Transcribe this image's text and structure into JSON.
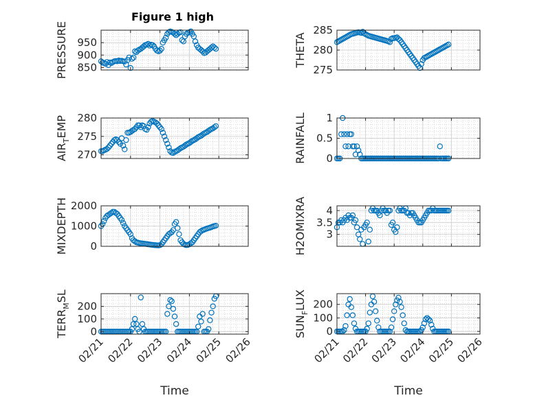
{
  "figure": {
    "title": "Figure 1 high"
  },
  "x_axis": {
    "label": "Time",
    "ticks": [
      "02/21",
      "02/22",
      "02/23",
      "02/24",
      "02/25",
      "02/26"
    ]
  },
  "chart_data": [
    {
      "type": "scatter",
      "ylabel": "PRESSURE",
      "ylim": [
        840,
        1000
      ],
      "yticks": [
        850,
        900,
        950
      ],
      "x": [
        0,
        0.05,
        0.1,
        0.15,
        0.2,
        0.25,
        0.3,
        0.35,
        0.4,
        0.45,
        0.5,
        0.55,
        0.6,
        0.65,
        0.7,
        0.75,
        0.8,
        0.85,
        0.9,
        0.95,
        1.0,
        1.05,
        1.1,
        1.15,
        1.2,
        1.25,
        1.3,
        1.35,
        1.4,
        1.45,
        1.5,
        1.55,
        1.6,
        1.65,
        1.7,
        1.75,
        1.8,
        1.85,
        1.9,
        1.95,
        2.0,
        2.05,
        2.1,
        2.15,
        2.2,
        2.25,
        2.3,
        2.35,
        2.4,
        2.45,
        2.5,
        2.55,
        2.6,
        2.65,
        2.7,
        2.75,
        2.8,
        2.85,
        2.9,
        2.95,
        3.0,
        3.05,
        3.1,
        3.15,
        3.2,
        3.25,
        3.3,
        3.35,
        3.4,
        3.45,
        3.5,
        3.55,
        3.6,
        3.65,
        3.7,
        3.75,
        3.8,
        3.85,
        3.9
      ],
      "y": [
        875,
        870,
        868,
        865,
        872,
        860,
        870,
        868,
        872,
        875,
        876,
        875,
        878,
        876,
        877,
        875,
        874,
        862,
        880,
        890,
        848,
        885,
        890,
        915,
        912,
        918,
        922,
        925,
        930,
        935,
        940,
        942,
        945,
        938,
        942,
        940,
        935,
        925,
        918,
        915,
        918,
        925,
        950,
        960,
        970,
        985,
        992,
        995,
        993,
        990,
        985,
        980,
        985,
        990,
        992,
        960,
        955,
        975,
        985,
        990,
        992,
        995,
        985,
        975,
        955,
        940,
        930,
        925,
        920,
        915,
        908,
        910,
        915,
        920,
        925,
        930,
        935,
        930,
        925
      ]
    },
    {
      "type": "scatter",
      "ylabel": "THETA",
      "ylim": [
        275,
        285
      ],
      "yticks": [
        275,
        280,
        285
      ],
      "x": [
        0,
        0.05,
        0.1,
        0.15,
        0.2,
        0.25,
        0.3,
        0.35,
        0.4,
        0.45,
        0.5,
        0.55,
        0.6,
        0.65,
        0.7,
        0.75,
        0.8,
        0.85,
        0.9,
        0.95,
        1.0,
        1.05,
        1.1,
        1.15,
        1.2,
        1.25,
        1.3,
        1.35,
        1.4,
        1.45,
        1.5,
        1.55,
        1.6,
        1.65,
        1.7,
        1.75,
        1.8,
        1.85,
        1.9,
        1.95,
        2.0,
        2.05,
        2.1,
        2.15,
        2.2,
        2.25,
        2.3,
        2.35,
        2.4,
        2.45,
        2.5,
        2.55,
        2.6,
        2.65,
        2.7,
        2.75,
        2.8,
        2.85,
        2.9,
        2.95,
        3.0,
        3.05,
        3.1,
        3.15,
        3.2,
        3.25,
        3.3,
        3.35,
        3.4,
        3.45,
        3.5,
        3.55,
        3.6,
        3.65,
        3.7,
        3.75,
        3.8,
        3.85,
        3.9
      ],
      "y": [
        282,
        282.2,
        282.4,
        282.6,
        282.8,
        283,
        283.2,
        283.4,
        283.6,
        283.8,
        284,
        284.1,
        284.2,
        284.3,
        284.4,
        284.5,
        284.4,
        284.3,
        284.6,
        284.2,
        284,
        283.8,
        283.6,
        283.5,
        283.4,
        283.3,
        283.2,
        283.1,
        283,
        282.9,
        282.8,
        282.7,
        282.6,
        282.5,
        282.4,
        282.3,
        282.2,
        282,
        282.8,
        283,
        283,
        283.1,
        283.2,
        282.8,
        282.5,
        282,
        281.5,
        281,
        280.5,
        280,
        279.5,
        279,
        278.5,
        278,
        277.5,
        277,
        276.5,
        276,
        275.5,
        276.5,
        277.5,
        278,
        278.2,
        278.4,
        278.6,
        278.8,
        279,
        279.2,
        279.4,
        279.6,
        279.8,
        280,
        280.2,
        280.4,
        280.6,
        280.8,
        281,
        281.2,
        281.4
      ]
    },
    {
      "type": "scatter",
      "ylabel": "AIR_TEMP",
      "ylim": [
        269,
        280
      ],
      "yticks": [
        270,
        275,
        280
      ],
      "x": [
        0,
        0.05,
        0.1,
        0.15,
        0.2,
        0.25,
        0.3,
        0.35,
        0.4,
        0.45,
        0.5,
        0.55,
        0.6,
        0.65,
        0.7,
        0.75,
        0.8,
        0.85,
        0.9,
        0.95,
        1.0,
        1.05,
        1.1,
        1.15,
        1.2,
        1.25,
        1.3,
        1.35,
        1.4,
        1.45,
        1.5,
        1.55,
        1.6,
        1.65,
        1.7,
        1.75,
        1.8,
        1.85,
        1.9,
        1.95,
        2.0,
        2.05,
        2.1,
        2.15,
        2.2,
        2.25,
        2.3,
        2.35,
        2.4,
        2.45,
        2.5,
        2.55,
        2.6,
        2.65,
        2.7,
        2.75,
        2.8,
        2.85,
        2.9,
        2.95,
        3.0,
        3.05,
        3.1,
        3.15,
        3.2,
        3.25,
        3.3,
        3.35,
        3.4,
        3.45,
        3.5,
        3.55,
        3.6,
        3.65,
        3.7,
        3.75,
        3.8,
        3.85,
        3.9
      ],
      "y": [
        271,
        271,
        271.2,
        271.4,
        271.6,
        272,
        272.5,
        273,
        273.5,
        274,
        274.2,
        274,
        273.5,
        273,
        274.5,
        272.5,
        271.5,
        274,
        276,
        276,
        276.2,
        276.5,
        276.8,
        277,
        277.5,
        278,
        278,
        277.5,
        278,
        277.8,
        277,
        276.8,
        277.5,
        278.5,
        279,
        279.2,
        279,
        278.8,
        278.5,
        278,
        277.5,
        277,
        276,
        275,
        274,
        273,
        272,
        271,
        270.6,
        270.5,
        270.8,
        271,
        271.2,
        271.5,
        271.8,
        272,
        272.2,
        272.5,
        272.8,
        273,
        273.2,
        273.5,
        273.8,
        274,
        274.2,
        274.5,
        274.8,
        275,
        275.2,
        275.5,
        275.8,
        276,
        276.2,
        276.5,
        276.8,
        277,
        277.2,
        277.5,
        277.8
      ]
    },
    {
      "type": "scatter",
      "ylabel": "RAINFALL",
      "ylim": [
        0,
        1
      ],
      "yticks": [
        0,
        0.5,
        1
      ],
      "x": [
        0,
        0.05,
        0.1,
        0.15,
        0.2,
        0.25,
        0.3,
        0.35,
        0.4,
        0.45,
        0.5,
        0.55,
        0.6,
        0.65,
        0.7,
        0.75,
        0.8,
        0.85,
        0.9,
        0.95,
        1.0,
        1.05,
        1.1,
        1.15,
        1.2,
        1.25,
        1.3,
        1.35,
        1.4,
        1.45,
        1.5,
        1.55,
        1.6,
        1.65,
        1.7,
        1.75,
        1.8,
        1.85,
        1.9,
        1.95,
        2.0,
        2.05,
        2.1,
        2.15,
        2.2,
        2.25,
        2.3,
        2.35,
        2.4,
        2.45,
        2.5,
        2.55,
        2.6,
        2.65,
        2.7,
        2.75,
        2.8,
        2.85,
        2.9,
        2.95,
        3.0,
        3.05,
        3.1,
        3.15,
        3.2,
        3.25,
        3.3,
        3.35,
        3.4,
        3.45,
        3.5,
        3.55,
        3.6,
        3.65,
        3.7,
        3.75,
        3.8,
        3.85,
        3.9
      ],
      "y": [
        0,
        0,
        0,
        0.6,
        1,
        0.6,
        0.3,
        0.6,
        0.3,
        0.6,
        0.6,
        0.3,
        0.3,
        0.1,
        0.3,
        0.2,
        0.1,
        0,
        0,
        0,
        0,
        0,
        0,
        0,
        0,
        0,
        0,
        0,
        0,
        0,
        0,
        0,
        0,
        0,
        0,
        0,
        0,
        0,
        0,
        0,
        0,
        0,
        0,
        0,
        0,
        0,
        0,
        0,
        0,
        0,
        0,
        0,
        0,
        0,
        0,
        0,
        0,
        0,
        0,
        0,
        0,
        0,
        0,
        0,
        0,
        0,
        0,
        0,
        0,
        0,
        0,
        0,
        0.3,
        0,
        0,
        0,
        0,
        0,
        0
      ]
    },
    {
      "type": "scatter",
      "ylabel": "MIXDEPTH",
      "ylim": [
        0,
        2000
      ],
      "yticks": [
        0,
        1000,
        2000
      ],
      "x": [
        0,
        0.05,
        0.1,
        0.15,
        0.2,
        0.25,
        0.3,
        0.35,
        0.4,
        0.45,
        0.5,
        0.55,
        0.6,
        0.65,
        0.7,
        0.75,
        0.8,
        0.85,
        0.9,
        0.95,
        1.0,
        1.05,
        1.1,
        1.15,
        1.2,
        1.25,
        1.3,
        1.35,
        1.4,
        1.45,
        1.5,
        1.55,
        1.6,
        1.65,
        1.7,
        1.75,
        1.8,
        1.85,
        1.9,
        1.95,
        2.0,
        2.05,
        2.1,
        2.15,
        2.2,
        2.25,
        2.3,
        2.35,
        2.4,
        2.45,
        2.5,
        2.55,
        2.6,
        2.65,
        2.7,
        2.75,
        2.8,
        2.85,
        2.9,
        2.95,
        3.0,
        3.05,
        3.1,
        3.15,
        3.2,
        3.25,
        3.3,
        3.35,
        3.4,
        3.45,
        3.5,
        3.55,
        3.6,
        3.65,
        3.7,
        3.75,
        3.8,
        3.85,
        3.9
      ],
      "y": [
        1000,
        1100,
        1250,
        1400,
        1500,
        1550,
        1600,
        1650,
        1700,
        1700,
        1650,
        1600,
        1500,
        1400,
        1300,
        1150,
        1000,
        900,
        800,
        700,
        600,
        400,
        300,
        250,
        200,
        180,
        160,
        150,
        140,
        130,
        120,
        110,
        100,
        90,
        80,
        70,
        60,
        55,
        50,
        45,
        60,
        100,
        200,
        300,
        400,
        500,
        600,
        650,
        700,
        800,
        1100,
        1200,
        900,
        600,
        300,
        200,
        120,
        80,
        60,
        70,
        100,
        150,
        200,
        300,
        400,
        500,
        600,
        700,
        750,
        800,
        820,
        850,
        880,
        900,
        920,
        950,
        980,
        1000,
        1020
      ]
    },
    {
      "type": "scatter",
      "ylabel": "H2OMIXRA",
      "ylim": [
        2.5,
        4.2
      ],
      "yticks": [
        3,
        3.5,
        4
      ],
      "x": [
        0,
        0.05,
        0.1,
        0.15,
        0.2,
        0.25,
        0.3,
        0.35,
        0.4,
        0.45,
        0.5,
        0.55,
        0.6,
        0.65,
        0.7,
        0.75,
        0.8,
        0.85,
        0.9,
        0.95,
        1.0,
        1.05,
        1.1,
        1.15,
        1.2,
        1.25,
        1.3,
        1.35,
        1.4,
        1.45,
        1.5,
        1.55,
        1.6,
        1.65,
        1.7,
        1.75,
        1.8,
        1.85,
        1.9,
        1.95,
        2.0,
        2.05,
        2.1,
        2.15,
        2.2,
        2.25,
        2.3,
        2.35,
        2.4,
        2.45,
        2.5,
        2.55,
        2.6,
        2.65,
        2.7,
        2.75,
        2.8,
        2.85,
        2.9,
        2.95,
        3.0,
        3.05,
        3.1,
        3.15,
        3.2,
        3.25,
        3.3,
        3.35,
        3.4,
        3.45,
        3.5,
        3.55,
        3.6,
        3.65,
        3.7,
        3.75,
        3.8,
        3.85,
        3.9
      ],
      "y": [
        3.3,
        3.5,
        3.5,
        3.6,
        3.5,
        3.6,
        3.7,
        3.6,
        3.8,
        3.7,
        3.7,
        3.8,
        3.5,
        3.6,
        3.3,
        3,
        2.8,
        3.2,
        2.6,
        3.3,
        3.4,
        3.5,
        2.7,
        3.2,
        4,
        4.1,
        4,
        4,
        4,
        3.9,
        3.8,
        4,
        4.1,
        4,
        4,
        3.9,
        4,
        4,
        3.4,
        3.5,
        3.2,
        3.1,
        3.3,
        4,
        4.1,
        4,
        4,
        4,
        4.1,
        3.9,
        3.9,
        3.8,
        3.9,
        3.9,
        3.8,
        3.7,
        3.6,
        3.5,
        3.5,
        3.5,
        3.6,
        3.7,
        3.8,
        3.9,
        4,
        4,
        4,
        4.1,
        4,
        4,
        4,
        4,
        4,
        4,
        4,
        4,
        4,
        4,
        4
      ]
    },
    {
      "type": "scatter",
      "ylabel": "TERR_MSL",
      "ylim": [
        -20,
        300
      ],
      "yticks": [
        0,
        100,
        200
      ],
      "x": [
        0,
        0.05,
        0.1,
        0.15,
        0.2,
        0.25,
        0.3,
        0.35,
        0.4,
        0.45,
        0.5,
        0.55,
        0.6,
        0.65,
        0.7,
        0.75,
        0.8,
        0.85,
        0.9,
        0.95,
        1.0,
        1.05,
        1.1,
        1.15,
        1.2,
        1.25,
        1.3,
        1.35,
        1.4,
        1.45,
        1.5,
        1.55,
        1.6,
        1.65,
        1.7,
        1.75,
        1.8,
        1.85,
        1.9,
        1.95,
        2.0,
        2.05,
        2.1,
        2.15,
        2.2,
        2.25,
        2.3,
        2.35,
        2.4,
        2.45,
        2.5,
        2.55,
        2.6,
        2.65,
        2.7,
        2.75,
        2.8,
        2.85,
        2.9,
        2.95,
        3.0,
        3.05,
        3.1,
        3.15,
        3.2,
        3.25,
        3.3,
        3.35,
        3.4,
        3.45,
        3.5,
        3.55,
        3.6,
        3.65,
        3.7,
        3.75,
        3.8,
        3.85,
        3.9
      ],
      "y": [
        0,
        0,
        0,
        0,
        0,
        0,
        0,
        0,
        0,
        0,
        0,
        0,
        0,
        0,
        0,
        0,
        0,
        0,
        0,
        0,
        0,
        20,
        60,
        100,
        60,
        20,
        0,
        270,
        60,
        20,
        0,
        0,
        0,
        0,
        0,
        0,
        0,
        0,
        0,
        0,
        0,
        0,
        0,
        0,
        0,
        140,
        200,
        250,
        240,
        180,
        120,
        60,
        0,
        0,
        0,
        0,
        0,
        0,
        0,
        0,
        0,
        0,
        0,
        0,
        0,
        0,
        40,
        120,
        80,
        140,
        0,
        0,
        0,
        20,
        90,
        150,
        200,
        260,
        280
      ]
    },
    {
      "type": "scatter",
      "ylabel": "SUN_FLUX",
      "ylim": [
        -20,
        280
      ],
      "yticks": [
        0,
        100,
        200
      ],
      "x": [
        0,
        0.05,
        0.1,
        0.15,
        0.2,
        0.25,
        0.3,
        0.35,
        0.4,
        0.45,
        0.5,
        0.55,
        0.6,
        0.65,
        0.7,
        0.75,
        0.8,
        0.85,
        0.9,
        0.95,
        1.0,
        1.05,
        1.1,
        1.15,
        1.2,
        1.25,
        1.3,
        1.35,
        1.4,
        1.45,
        1.5,
        1.55,
        1.6,
        1.65,
        1.7,
        1.75,
        1.8,
        1.85,
        1.9,
        1.95,
        2.0,
        2.05,
        2.1,
        2.15,
        2.2,
        2.25,
        2.3,
        2.35,
        2.4,
        2.45,
        2.5,
        2.55,
        2.6,
        2.65,
        2.7,
        2.75,
        2.8,
        2.85,
        2.9,
        2.95,
        3.0,
        3.05,
        3.1,
        3.15,
        3.2,
        3.25,
        3.3,
        3.35,
        3.4,
        3.45,
        3.5,
        3.55,
        3.6,
        3.65,
        3.7,
        3.75,
        3.8,
        3.85,
        3.9
      ],
      "y": [
        0,
        0,
        0,
        0,
        0,
        10,
        40,
        120,
        200,
        240,
        180,
        120,
        60,
        20,
        0,
        0,
        0,
        0,
        0,
        0,
        0,
        20,
        60,
        140,
        200,
        260,
        220,
        150,
        80,
        30,
        0,
        0,
        0,
        0,
        0,
        0,
        0,
        0,
        30,
        90,
        150,
        200,
        230,
        250,
        220,
        180,
        120,
        60,
        10,
        0,
        0,
        0,
        0,
        0,
        0,
        0,
        0,
        0,
        0,
        10,
        30,
        60,
        90,
        100,
        90,
        80,
        50,
        20,
        0,
        0,
        0,
        0,
        0,
        0,
        0,
        0,
        0,
        0,
        0
      ]
    }
  ]
}
